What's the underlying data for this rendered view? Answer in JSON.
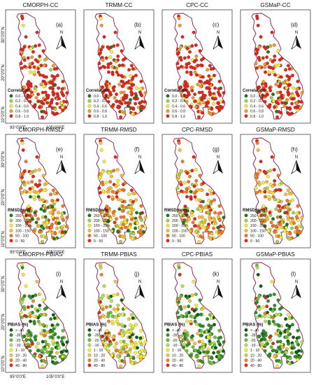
{
  "colors": {
    "boundary": "#8a1a3a",
    "map_fill": "#ffffff",
    "frame": "#444444"
  },
  "latitude_labels": [
    "30°0'0\"N",
    "20°0'0\"N",
    "10°0'0\"N"
  ],
  "longitude_labels": [
    "95°0'0\"E",
    "105°0'0\"E"
  ],
  "north_label": "N",
  "icon": "north-arrow-icon",
  "rows": [
    {
      "key": "cc",
      "legend_title": "Correlation",
      "classes": [
        {
          "label": "0.0 - 0.2",
          "color": "#1b7a1b"
        },
        {
          "label": "0.2 - 0.4",
          "color": "#9fd34a"
        },
        {
          "label": "0.4 - 0.6",
          "color": "#f5ee3a"
        },
        {
          "label": "0.6 - 0.8",
          "color": "#f39a2c"
        },
        {
          "label": "0.8 - 1.0",
          "color": "#e3261c"
        }
      ],
      "panels": [
        {
          "title": "CMORPH-CC",
          "letter": "(a)",
          "mix": [
            1,
            3,
            8,
            22,
            66
          ]
        },
        {
          "title": "TRMM-CC",
          "letter": "(b)",
          "mix": [
            3,
            3,
            6,
            18,
            70
          ]
        },
        {
          "title": "CPC-CC",
          "letter": "(c)",
          "mix": [
            2,
            3,
            6,
            19,
            70
          ]
        },
        {
          "title": "GSMaP-CC",
          "letter": "(d)",
          "mix": [
            4,
            4,
            7,
            18,
            67
          ]
        }
      ]
    },
    {
      "key": "rmsd",
      "legend_title": "RMSD(mm)",
      "classes": [
        {
          "label": "250 - 300",
          "color": "#1b7a1b"
        },
        {
          "label": "200 - 250",
          "color": "#9fd34a"
        },
        {
          "label": "150 - 200",
          "color": "#f5ee3a"
        },
        {
          "label": "100 - 150",
          "color": "#f8c03a"
        },
        {
          "label": "50 - 100",
          "color": "#f3762a"
        },
        {
          "label": "0 - 50",
          "color": "#e3261c"
        }
      ],
      "panels": [
        {
          "title": "CMORPH-RMSD",
          "letter": "(e)",
          "mix": [
            3,
            8,
            16,
            24,
            30,
            19
          ]
        },
        {
          "title": "TRMM-RMSD",
          "letter": "(f)",
          "mix": [
            3,
            8,
            15,
            25,
            31,
            18
          ]
        },
        {
          "title": "CPC-RMSD",
          "letter": "(g)",
          "mix": [
            2,
            6,
            14,
            24,
            32,
            22
          ]
        },
        {
          "title": "GSMaP-RMSD",
          "letter": "(h)",
          "mix": [
            3,
            8,
            16,
            24,
            30,
            19
          ]
        }
      ]
    },
    {
      "key": "pbias",
      "legend_title": "PBIAS (%)",
      "classes": [
        {
          "label": "> -40",
          "color": "#0f5c14"
        },
        {
          "label": "-39 - -20",
          "color": "#2f8f2a"
        },
        {
          "label": "-20 - -10",
          "color": "#6cbf3a"
        },
        {
          "label": "-10 - 0",
          "color": "#b9e05a"
        },
        {
          "label": "1 - 10",
          "color": "#f6f03a"
        },
        {
          "label": "10 - 20",
          "color": "#f8c23a"
        },
        {
          "label": "20 - 40",
          "color": "#f3822a"
        },
        {
          "label": "40 - 80",
          "color": "#e3261c"
        }
      ],
      "panels": [
        {
          "title": "CMORPH-PBIAS",
          "letter": "(i)",
          "mix": [
            8,
            40,
            20,
            10,
            8,
            6,
            5,
            3
          ]
        },
        {
          "title": "TRMM-PBIAS",
          "letter": "(j)",
          "mix": [
            2,
            8,
            14,
            18,
            30,
            16,
            8,
            4
          ]
        },
        {
          "title": "CPC-PBIAS",
          "letter": "(k)",
          "mix": [
            10,
            38,
            18,
            10,
            9,
            7,
            5,
            3
          ]
        },
        {
          "title": "GSMaP-PBIAS",
          "letter": "(l)",
          "mix": [
            12,
            40,
            18,
            10,
            8,
            6,
            4,
            2
          ]
        }
      ]
    }
  ]
}
